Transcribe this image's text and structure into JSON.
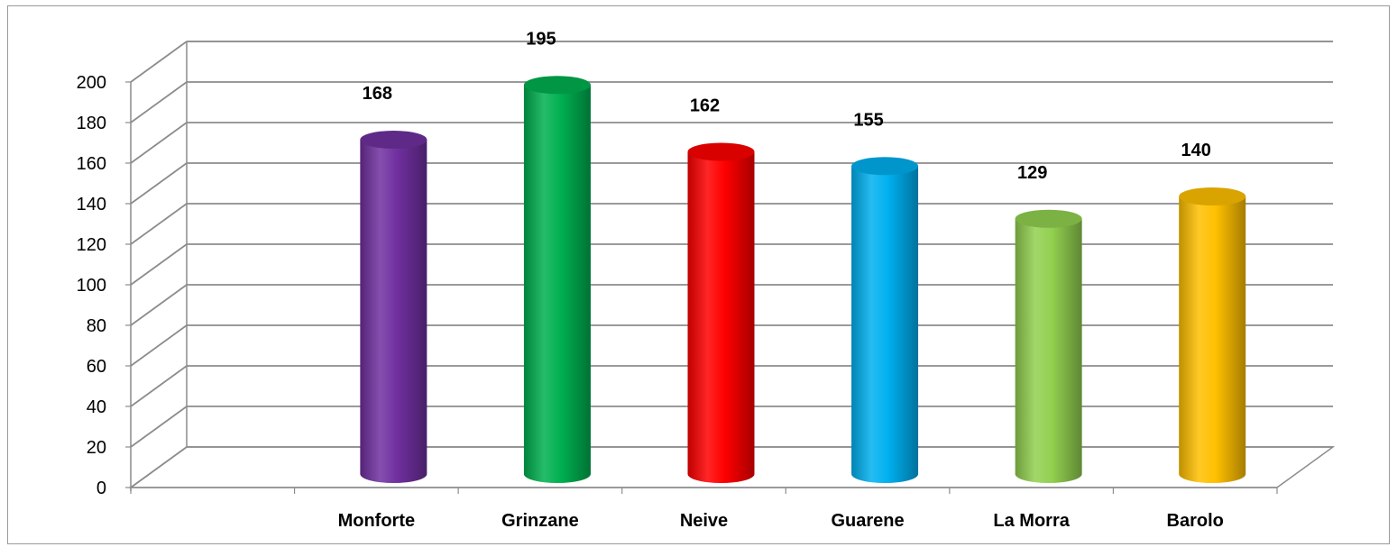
{
  "chart_data": {
    "type": "bar",
    "style": "3d-cylinder",
    "categories": [
      "Monforte",
      "Grinzane",
      "Neive",
      "Guarene",
      "La Morra",
      "Barolo"
    ],
    "values": [
      168,
      195,
      162,
      155,
      129,
      140
    ],
    "colors": [
      "#7030a0",
      "#00b050",
      "#ff0000",
      "#00b0f0",
      "#92d050",
      "#ffc000"
    ],
    "ylim": [
      0,
      200
    ],
    "yticks": [
      0,
      20,
      40,
      60,
      80,
      100,
      120,
      140,
      160,
      180,
      200
    ],
    "title": "",
    "xlabel": "",
    "ylabel": "",
    "grid": true,
    "legend": "none",
    "data_labels": true
  }
}
